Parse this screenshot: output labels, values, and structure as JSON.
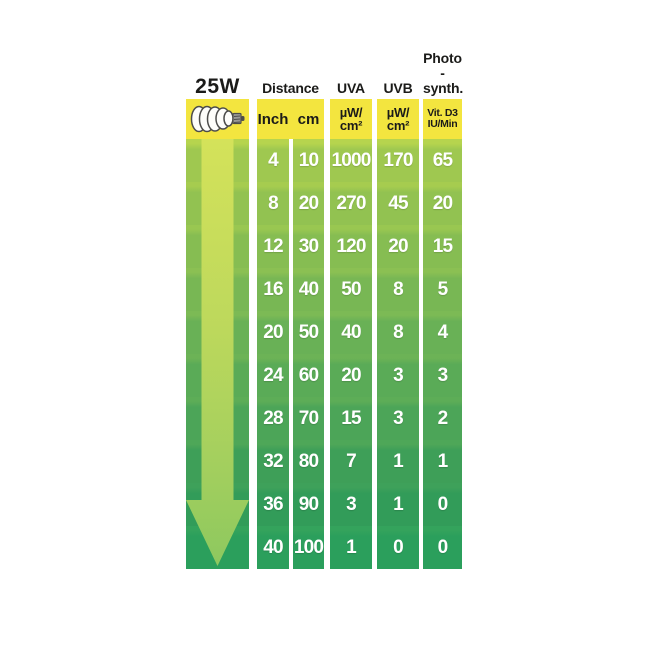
{
  "labels": {
    "wattage": "25W",
    "distance": "Distance",
    "uva": "UVA",
    "uvb": "UVB",
    "photo_line1": "Photo",
    "photo_line2": "-synth.",
    "inch": "Inch",
    "cm": "cm",
    "uva_unit_line1": "µW/",
    "uva_unit_line2": "cm²",
    "uvb_unit_line1": "µW/",
    "uvb_unit_line2": "cm²",
    "photo_unit_line1": "Vit. D3",
    "photo_unit_line2": "IU/Min"
  },
  "icons": {
    "bulb": "cfl-bulb-icon",
    "arrow": "down-arrow-icon"
  },
  "colors": {
    "header_yellow": "#f3e53f",
    "header_text": "#1b1b19",
    "value_text": "#ffffff",
    "row_palette": [
      {
        "top": "#b6d44e",
        "base": "#9fc850"
      },
      {
        "top": "#a6cc4f",
        "base": "#92c251"
      },
      {
        "top": "#99c751",
        "base": "#86bd52"
      },
      {
        "top": "#8bc053",
        "base": "#78b754"
      },
      {
        "top": "#7cba55",
        "base": "#69b156"
      },
      {
        "top": "#6cb356",
        "base": "#5aab57"
      },
      {
        "top": "#5dad57",
        "base": "#4ca558"
      },
      {
        "top": "#4ea758",
        "base": "#3e9f58"
      },
      {
        "top": "#3ea15a",
        "base": "#329c59"
      },
      {
        "top": "#34a35c",
        "base": "#2b9f5c"
      }
    ],
    "arrow_gradient": [
      "#d4e25a",
      "#bcd85c",
      "#a0ce5e",
      "#8dc85f"
    ]
  },
  "chart_data": {
    "type": "table",
    "title": "25W",
    "columns": [
      "Distance Inch",
      "Distance cm",
      "UVA µW/cm²",
      "UVB µW/cm²",
      "Photo-synth. Vit. D3 IU/Min"
    ],
    "rows": [
      [
        4,
        10,
        1000,
        170,
        65
      ],
      [
        8,
        20,
        270,
        45,
        20
      ],
      [
        12,
        30,
        120,
        20,
        15
      ],
      [
        16,
        40,
        50,
        8,
        5
      ],
      [
        20,
        50,
        40,
        8,
        4
      ],
      [
        24,
        60,
        20,
        3,
        3
      ],
      [
        28,
        70,
        15,
        3,
        2
      ],
      [
        32,
        80,
        7,
        1,
        1
      ],
      [
        36,
        90,
        3,
        1,
        0
      ],
      [
        40,
        100,
        1,
        0,
        0
      ]
    ],
    "layout_hints": {
      "row_count": 10,
      "color_meaning": "rows fade from yellow-green (close to lamp) to green (far from lamp)",
      "arrow": "downward arrow indicates increasing distance from lamp"
    }
  }
}
